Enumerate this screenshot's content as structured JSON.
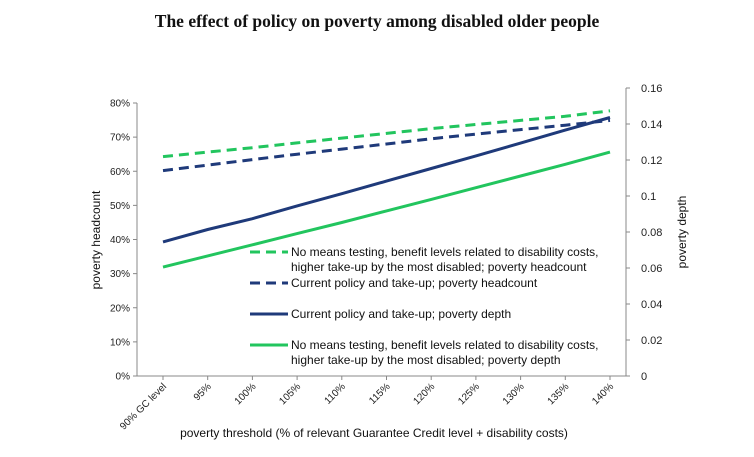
{
  "chart_data": {
    "type": "line",
    "title": "The effect of policy on poverty among disabled older people",
    "xlabel": "poverty threshold (% of relevant Guarantee Credit level + disability costs)",
    "ylabel": "poverty headcount",
    "y2label": "poverty depth",
    "categories": [
      "90% GC level",
      "95%",
      "100%",
      "105%",
      "110%",
      "115%",
      "120%",
      "125%",
      "130%",
      "135%",
      "140%"
    ],
    "ylim": [
      0,
      0.8
    ],
    "yticks": [
      "0%",
      "10%",
      "20%",
      "30%",
      "40%",
      "50%",
      "60%",
      "70%",
      "80%"
    ],
    "y2lim": [
      0,
      0.16
    ],
    "y2ticks": [
      "0",
      "0.02",
      "0.04",
      "0.06",
      "0.08",
      "0.1",
      "0.12",
      "0.14",
      "0.16"
    ],
    "grid": false,
    "legend_position": "inside-lower-right",
    "series": [
      {
        "name": "No means testing, benefit levels related to disability costs, higher take-up by the most disabled; poverty headcount",
        "axis": "left",
        "style": "dashed",
        "color": "#22c55e",
        "values": [
          0.643,
          0.656,
          0.669,
          0.683,
          0.697,
          0.711,
          0.725,
          0.737,
          0.749,
          0.761,
          0.777
        ]
      },
      {
        "name": "Current policy and take-up; poverty headcount",
        "axis": "left",
        "style": "dashed",
        "color": "#1f3a7a",
        "values": [
          0.602,
          0.618,
          0.634,
          0.65,
          0.665,
          0.68,
          0.695,
          0.709,
          0.722,
          0.735,
          0.749
        ]
      },
      {
        "name": "Current policy and take-up; poverty depth",
        "axis": "right",
        "style": "solid",
        "color": "#1f3a7a",
        "values": [
          0.0745,
          0.0814,
          0.0874,
          0.0945,
          0.1013,
          0.1083,
          0.1153,
          0.1223,
          0.1294,
          0.1366,
          0.1436
        ]
      },
      {
        "name": "No means testing, benefit levels related to disability costs, higher take-up by the most disabled; poverty depth",
        "axis": "right",
        "style": "solid",
        "color": "#22c55e",
        "values": [
          0.0605,
          0.0667,
          0.0729,
          0.0791,
          0.0853,
          0.0917,
          0.0981,
          0.1046,
          0.1111,
          0.1176,
          0.1244
        ]
      }
    ],
    "legend": {
      "entries": [
        {
          "lines": [
            "No means testing, benefit levels related to disability costs,",
            "higher take-up by the most disabled; poverty headcount"
          ]
        },
        {
          "lines": [
            "Current policy and take-up; poverty headcount"
          ]
        },
        {
          "lines": [
            "Current policy and take-up; poverty depth"
          ]
        },
        {
          "lines": [
            "No means testing, benefit levels related to disability costs,",
            "higher take-up by the most disabled; poverty depth"
          ]
        }
      ]
    }
  }
}
